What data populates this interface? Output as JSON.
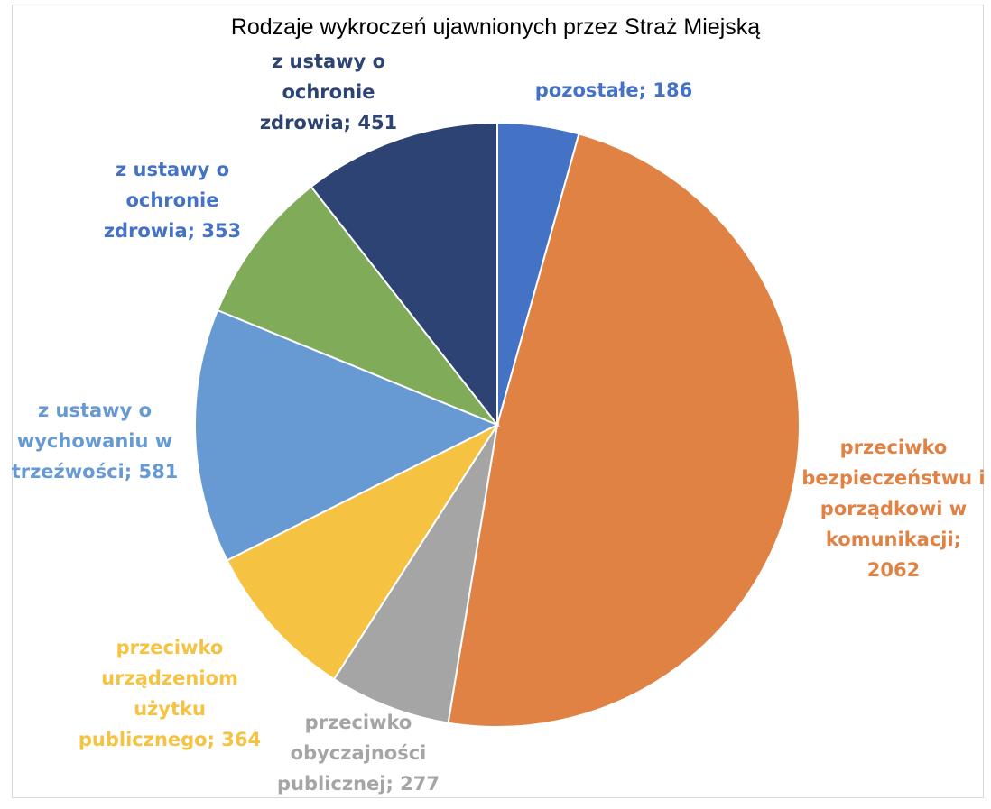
{
  "chart_data": {
    "type": "pie",
    "title": "Rodzaje wykroczeń ujawnionych przez Straż Miejską",
    "slices": [
      {
        "label": "pozostałe",
        "value": 186,
        "color": "#4472c4",
        "label_lines": [
          "pozostałe; 186"
        ]
      },
      {
        "label": "przeciwko bezpieczeństwu i porządkowi w komunikacji",
        "value": 2062,
        "color": "#e08244",
        "label_lines": [
          "przeciwko",
          "bezpieczeństwu i",
          "porządkowi w",
          "komunikacji;",
          "2062"
        ]
      },
      {
        "label": "przeciwko obyczajności publicznej",
        "value": 277,
        "color": "#a5a5a5",
        "label_lines": [
          "przeciwko",
          "obyczajności",
          "publicznej; 277"
        ]
      },
      {
        "label": "przeciwko urządzeniom użytku publicznego",
        "value": 364,
        "color": "#f5c242",
        "label_lines": [
          "przeciwko",
          "urządzeniom",
          "użytku",
          "publicznego; 364"
        ]
      },
      {
        "label": "z ustawy o wychowaniu w trzeźwości",
        "value": 581,
        "color": "#679ad2",
        "label_lines": [
          "z ustawy o",
          "wychowaniu w",
          "trzeźwości; 581"
        ]
      },
      {
        "label": "z ustawy o ochronie zdrowia",
        "value": 353,
        "color": "#80ab58",
        "label_lines": [
          "z ustawy o",
          "ochronie",
          "zdrowia; 353"
        ]
      },
      {
        "label": "z ustawy o ochronie zdrowia",
        "value": 451,
        "color": "#2c4374",
        "label_lines": [
          "z ustawy o",
          "ochronie",
          "zdrowia; 451"
        ]
      }
    ],
    "label_colors": [
      "#4472c4",
      "#e08244",
      "#a5a5a5",
      "#f5c242",
      "#679ad2",
      "#4472c4",
      "#2c4374"
    ]
  }
}
